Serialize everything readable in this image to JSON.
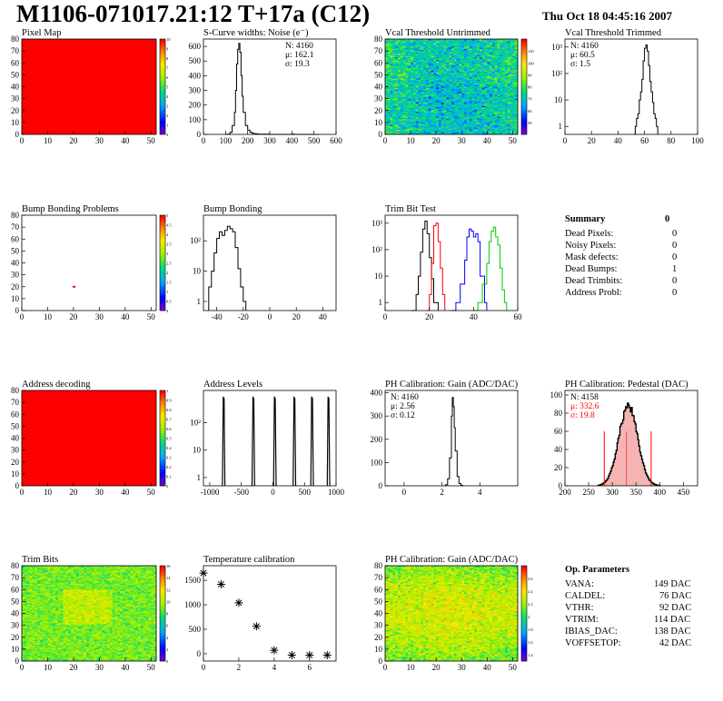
{
  "header": {
    "title": "M1106-071017.21:12 T+17a (C12)",
    "date": "Thu Oct 18 04:45:16 2007"
  },
  "summary": {
    "title": "Summary",
    "total": "0",
    "rows": [
      {
        "label": "Dead Pixels:",
        "value": "0"
      },
      {
        "label": "Noisy Pixels:",
        "value": "0"
      },
      {
        "label": "Mask defects:",
        "value": "0"
      },
      {
        "label": "Dead Bumps:",
        "value": "1"
      },
      {
        "label": "Dead Trimbits:",
        "value": "0"
      },
      {
        "label": "Address Probl:",
        "value": "0"
      }
    ]
  },
  "op_parameters": {
    "title": "Op. Parameters",
    "rows": [
      {
        "label": "VANA:",
        "value": "149 DAC"
      },
      {
        "label": "CALDEL:",
        "value": "76 DAC"
      },
      {
        "label": "VTHR:",
        "value": "92 DAC"
      },
      {
        "label": "VTRIM:",
        "value": "114 DAC"
      },
      {
        "label": "IBIAS_DAC:",
        "value": "138 DAC"
      },
      {
        "label": "VOFFSETOP:",
        "value": "42 DAC"
      }
    ]
  },
  "chart_data": [
    {
      "id": "pixel-map",
      "type": "heatmap",
      "title": "Pixel Map",
      "xlim": [
        0,
        52
      ],
      "ylim": [
        0,
        80
      ],
      "xticks": [
        "0",
        "10",
        "20",
        "30",
        "40",
        "50"
      ],
      "yticks": [
        "0",
        "10",
        "20",
        "30",
        "40",
        "50",
        "60",
        "70",
        "80"
      ],
      "zlim": [
        0,
        10
      ],
      "zticks": [
        "0",
        "1",
        "2",
        "3",
        "4",
        "5",
        "6",
        "7",
        "8",
        "9",
        "10"
      ],
      "pattern": "uniform",
      "fill_color": "#ff0000"
    },
    {
      "id": "scurve-noise",
      "type": "histogram",
      "title": "S-Curve widths: Noise (e⁻)",
      "xlim": [
        0,
        600
      ],
      "ylim": [
        0,
        650
      ],
      "xticks": [
        "0",
        "100",
        "200",
        "300",
        "400",
        "500",
        "600"
      ],
      "yticks": [
        "0",
        "100",
        "200",
        "300",
        "400",
        "500",
        "600"
      ],
      "stats": [
        "N:  4160",
        "μ:  162.1",
        "σ:  19.3"
      ],
      "series": [
        {
          "color": "#000000",
          "x": [
            100,
            110,
            120,
            130,
            140,
            145,
            150,
            155,
            160,
            165,
            170,
            175,
            180,
            190,
            200,
            210,
            220,
            230,
            240,
            250,
            260,
            270,
            280,
            290,
            300,
            400,
            410,
            520
          ],
          "y": [
            0,
            2,
            15,
            60,
            150,
            300,
            480,
            580,
            620,
            560,
            400,
            260,
            150,
            60,
            30,
            15,
            8,
            5,
            3,
            2,
            2,
            1,
            1,
            1,
            0,
            1,
            0,
            1
          ]
        }
      ]
    },
    {
      "id": "vcal-untrimmed",
      "type": "heatmap",
      "title": "Vcal Threshold Untrimmed",
      "xlim": [
        0,
        52
      ],
      "ylim": [
        0,
        80
      ],
      "xticks": [
        "0",
        "10",
        "20",
        "30",
        "40",
        "50"
      ],
      "yticks": [
        "0",
        "10",
        "20",
        "30",
        "40",
        "50",
        "60",
        "70",
        "80"
      ],
      "zlim": [
        40,
        120
      ],
      "zticks": [
        "50",
        "60",
        "70",
        "80",
        "90",
        "100",
        "110"
      ],
      "pattern": "noise",
      "base": 75,
      "spread": 14
    },
    {
      "id": "vcal-trimmed",
      "type": "histogram",
      "title": "Vcal Threshold Trimmed",
      "xlim": [
        0,
        100
      ],
      "ylim": [
        0.5,
        2000
      ],
      "log": true,
      "xticks": [
        "0",
        "20",
        "40",
        "60",
        "80",
        "100"
      ],
      "yticks": [
        "1",
        "10",
        "10²",
        "10³"
      ],
      "stats": [
        "N:  4160",
        "μ:  60.5",
        "σ:   1.5"
      ],
      "series": [
        {
          "color": "#000000",
          "x": [
            52,
            53,
            54,
            55,
            56,
            57,
            58,
            59,
            60,
            61,
            62,
            63,
            64,
            65,
            66,
            67,
            68,
            69,
            70
          ],
          "y": [
            0,
            1,
            2,
            3,
            10,
            20,
            60,
            300,
            900,
            1200,
            700,
            200,
            50,
            20,
            8,
            3,
            2,
            1,
            0
          ]
        }
      ]
    },
    {
      "id": "bump-problems",
      "type": "heatmap",
      "title": "Bump Bonding Problems",
      "xlim": [
        0,
        52
      ],
      "ylim": [
        0,
        80
      ],
      "xticks": [
        "0",
        "10",
        "20",
        "30",
        "40",
        "50"
      ],
      "yticks": [
        "0",
        "10",
        "20",
        "30",
        "40",
        "50",
        "60",
        "70",
        "80"
      ],
      "zlim": [
        0,
        5
      ],
      "zticks": [
        "0",
        "0.5",
        "1",
        "1.5",
        "2",
        "2.5",
        "3",
        "3.5",
        "4",
        "4.5",
        "5"
      ],
      "pattern": "sparse",
      "points": [
        {
          "x": 20,
          "y": 20,
          "color": "#ff0000"
        }
      ]
    },
    {
      "id": "bump-bonding",
      "type": "histogram",
      "title": "Bump Bonding",
      "xlim": [
        -50,
        50
      ],
      "ylim": [
        0.5,
        700
      ],
      "log": true,
      "xticks": [
        "-40",
        "-20",
        "0",
        "20",
        "40"
      ],
      "yticks": [
        "1",
        "10",
        "10²"
      ],
      "series": [
        {
          "color": "#000000",
          "x": [
            -46,
            -44,
            -42,
            -40,
            -38,
            -36,
            -34,
            -32,
            -30,
            -28,
            -26,
            -24,
            -22,
            -20,
            -18
          ],
          "y": [
            3,
            10,
            40,
            120,
            200,
            150,
            220,
            300,
            250,
            200,
            60,
            12,
            3,
            1,
            0
          ]
        }
      ]
    },
    {
      "id": "trim-bit-test",
      "type": "histogram",
      "title": "Trim Bit Test",
      "xlim": [
        0,
        60
      ],
      "ylim": [
        0.5,
        2000
      ],
      "log": true,
      "xticks": [
        "0",
        "20",
        "40",
        "60"
      ],
      "yticks": [
        "1",
        "10",
        "10²",
        "10³"
      ],
      "series": [
        {
          "color": "#000000",
          "x": [
            12,
            14,
            15,
            16,
            17,
            18,
            19,
            20,
            21,
            22,
            24
          ],
          "y": [
            0,
            2,
            10,
            80,
            600,
            1200,
            400,
            50,
            8,
            1,
            0
          ]
        },
        {
          "color": "#ff0000",
          "x": [
            19,
            20,
            21,
            22,
            23,
            24,
            25,
            26,
            27
          ],
          "y": [
            0,
            2,
            30,
            800,
            1000,
            200,
            20,
            2,
            0
          ]
        },
        {
          "color": "#0000ff",
          "x": [
            30,
            32,
            34,
            36,
            37,
            38,
            39,
            40,
            41,
            42,
            43,
            45,
            46
          ],
          "y": [
            0,
            1,
            5,
            40,
            300,
            600,
            500,
            300,
            400,
            200,
            10,
            1,
            0
          ]
        },
        {
          "color": "#00cc00",
          "x": [
            40,
            42,
            44,
            46,
            47,
            48,
            49,
            50,
            51,
            52,
            53,
            54,
            55
          ],
          "y": [
            0,
            1,
            5,
            30,
            200,
            500,
            700,
            300,
            150,
            20,
            3,
            1,
            0
          ]
        }
      ]
    },
    {
      "id": "address-decoding",
      "type": "heatmap",
      "title": "Address decoding",
      "xlim": [
        0,
        52
      ],
      "ylim": [
        0,
        80
      ],
      "xticks": [
        "0",
        "10",
        "20",
        "30",
        "40",
        "50"
      ],
      "yticks": [
        "0",
        "10",
        "20",
        "30",
        "40",
        "50",
        "60",
        "70",
        "80"
      ],
      "zlim": [
        0,
        1
      ],
      "zticks": [
        "0",
        "0.1",
        "0.2",
        "0.3",
        "0.4",
        "0.5",
        "0.6",
        "0.7",
        "0.8",
        "0.9",
        "1"
      ],
      "pattern": "uniform",
      "fill_color": "#ff0000"
    },
    {
      "id": "address-levels",
      "type": "histogram",
      "title": "Address Levels",
      "xlim": [
        -1100,
        1000
      ],
      "ylim": [
        0.5,
        1500
      ],
      "log": true,
      "xticks": [
        "-1000",
        "-500",
        "0",
        "500",
        "1000"
      ],
      "yticks": [
        "1",
        "10",
        "10²"
      ],
      "peaks": [
        -780,
        -310,
        30,
        340,
        620,
        880
      ],
      "peak_height": 900,
      "peak_width": 40
    },
    {
      "id": "ph-gain",
      "type": "histogram",
      "title": "PH Calibration: Gain (ADC/DAC)",
      "xlim": [
        -1,
        6
      ],
      "ylim": [
        0,
        410
      ],
      "xticks": [
        "0",
        "2",
        "4"
      ],
      "yticks": [
        "0",
        "100",
        "200",
        "300",
        "400"
      ],
      "stats": [
        "N:  4160",
        "μ:  2.56",
        "σ:  0.12"
      ],
      "series": [
        {
          "color": "#000000",
          "x": [
            2.1,
            2.2,
            2.3,
            2.4,
            2.5,
            2.55,
            2.6,
            2.65,
            2.7,
            2.8,
            2.9,
            3.0,
            3.1
          ],
          "y": [
            0,
            5,
            30,
            120,
            300,
            380,
            340,
            250,
            150,
            40,
            10,
            2,
            0
          ]
        }
      ]
    },
    {
      "id": "ph-pedestal",
      "type": "histogram",
      "title": "PH Calibration: Pedestal (DAC)",
      "xlim": [
        200,
        480
      ],
      "ylim": [
        0,
        105
      ],
      "xticks": [
        "200",
        "250",
        "300",
        "350",
        "400",
        "450"
      ],
      "yticks": [
        "0",
        "20",
        "40",
        "60",
        "80",
        "100"
      ],
      "stats": [
        {
          "text": "N:  4158",
          "color": "#000000"
        },
        {
          "text": "μ:  332.6",
          "color": "#ff0000"
        },
        {
          "text": "σ:  19.8",
          "color": "#ff0000"
        }
      ],
      "mean": 332.6,
      "sigma": 19.8,
      "count": 4158,
      "cut_lines": [
        283,
        382
      ]
    },
    {
      "id": "trim-bits",
      "type": "heatmap",
      "title": "Trim Bits",
      "xlim": [
        0,
        52
      ],
      "ylim": [
        0,
        80
      ],
      "xticks": [
        "0",
        "10",
        "20",
        "30",
        "40",
        "50"
      ],
      "yticks": [
        "0",
        "10",
        "20",
        "30",
        "40",
        "50",
        "60",
        "70",
        "80"
      ],
      "zlim": [
        0,
        16
      ],
      "zticks": [
        "0",
        "2",
        "4",
        "6",
        "8",
        "10",
        "12",
        "14",
        "16"
      ],
      "pattern": "noise",
      "base": 9,
      "spread": 1.8
    },
    {
      "id": "temperature-calibration",
      "type": "scatter",
      "title": "Temperature calibration",
      "xlim": [
        0,
        7.5
      ],
      "ylim": [
        -150,
        1800
      ],
      "xticks": [
        "0",
        "2",
        "4",
        "6"
      ],
      "yticks": [
        "0",
        "500",
        "1000",
        "1500"
      ],
      "x": [
        0,
        1,
        2,
        3,
        4,
        5,
        6,
        7
      ],
      "y": [
        1650,
        1420,
        1040,
        560,
        70,
        -30,
        -30,
        -30
      ]
    },
    {
      "id": "ph-gain-map",
      "type": "heatmap",
      "title": "PH Calibration: Gain (ADC/DAC)",
      "xlim": [
        0,
        52
      ],
      "ylim": [
        0,
        80
      ],
      "xticks": [
        "0",
        "10",
        "20",
        "30",
        "40",
        "50"
      ],
      "yticks": [
        "0",
        "10",
        "20",
        "30",
        "40",
        "50",
        "60",
        "70",
        "80"
      ],
      "zlim": [
        1.3,
        2.8
      ],
      "zticks": [
        "1.4",
        "1.6",
        "1.8",
        "2",
        "2.2",
        "2.4",
        "2.6"
      ],
      "pattern": "noise",
      "base": 2.35,
      "spread": 0.22
    }
  ]
}
